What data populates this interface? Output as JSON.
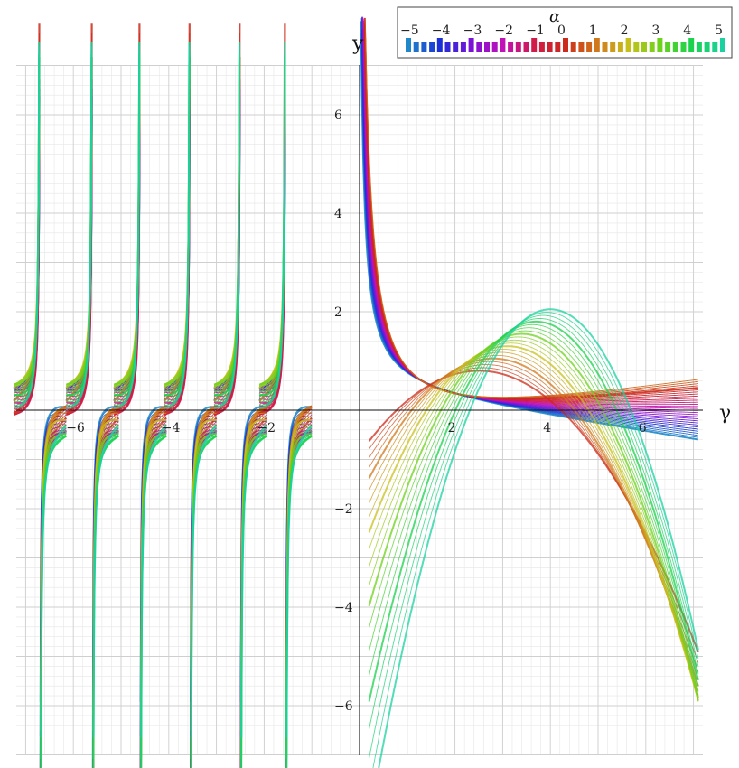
{
  "chart_data": {
    "type": "line",
    "title": "",
    "xlabel": "γ",
    "ylabel": "y",
    "xlim": [
      -7.2,
      7.6
    ],
    "ylim": [
      -7.0,
      7.2
    ],
    "xticks": [
      -6,
      -4,
      -2,
      2,
      4,
      6
    ],
    "yticks": [
      -6,
      -4,
      -2,
      2,
      4,
      6
    ],
    "xtick_labels": [
      "−6",
      "−4",
      "−2",
      "2",
      "4",
      "6"
    ],
    "ytick_labels": [
      "−6",
      "−4",
      "−2",
      "2",
      "4",
      "6"
    ],
    "grid": "on (minor and major)",
    "colorbar": {
      "title": "α",
      "range": [
        -5,
        5
      ],
      "ticks": [
        -5,
        -4,
        -3,
        -2,
        -1,
        0,
        1,
        2,
        3,
        4,
        5
      ],
      "tick_labels": [
        "−5",
        "−4",
        "−3",
        "−2",
        "−1",
        "0",
        "1",
        "2",
        "3",
        "4",
        "5"
      ],
      "placement": "top-right",
      "colors": [
        "#1e88c8",
        "#1a2fd6",
        "#7a12d8",
        "#c012b8",
        "#d01a4a",
        "#cc2a1a",
        "#d0781a",
        "#c8c01a",
        "#6cd21a",
        "#1ad24c",
        "#1ad2a0"
      ]
    },
    "description_of_series": "family of curves parameterized by α from −5 to 5 with poles near γ ≈ −6.7, −5.6, −4.6, −3.5, −2.5, −1.5, −0.3; colors follow the α colorbar"
  }
}
